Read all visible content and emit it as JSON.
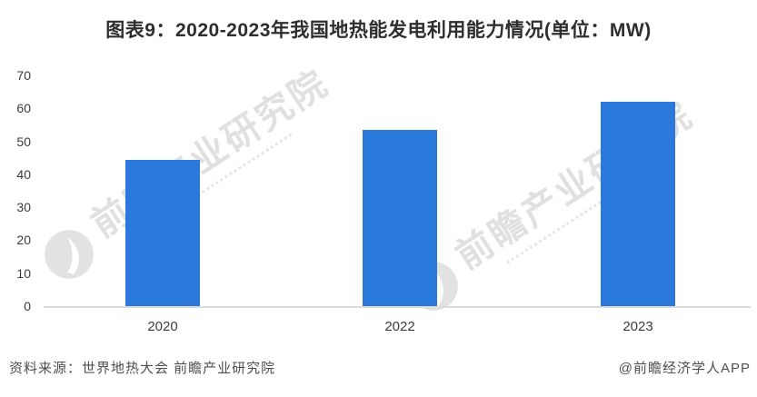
{
  "title": "图表9：2020-2023年我国地热能发电利用能力情况(单位：MW)",
  "chart_data": {
    "type": "bar",
    "title": "图表9：2020-2023年我国地热能发电利用能力情况(单位：MW)",
    "categories": [
      "2020",
      "2022",
      "2023"
    ],
    "values": [
      44.5,
      53.5,
      62
    ],
    "unit": "MW",
    "xlabel": "",
    "ylabel": "",
    "ylim": [
      0,
      70
    ],
    "yticks": [
      0,
      10,
      20,
      30,
      40,
      50,
      60,
      70
    ],
    "grid": false,
    "legend": "none",
    "bar_color": "#2b79da"
  },
  "watermark": {
    "text": "前瞻产业研究院",
    "logo": "qianzhan-swoosh-circle"
  },
  "footer": {
    "source": "资料来源：世界地热大会 前瞻产业研究院",
    "credit": "@前瞻经济学人APP"
  },
  "colors": {
    "bar": "#2b79da",
    "title_text": "#2e2e2e",
    "axis_text": "#3b3b3b",
    "axis_line": "#dcdcdc",
    "footer_text": "#4f4f4f",
    "watermark": "#c2c2c2",
    "background": "#ffffff"
  }
}
